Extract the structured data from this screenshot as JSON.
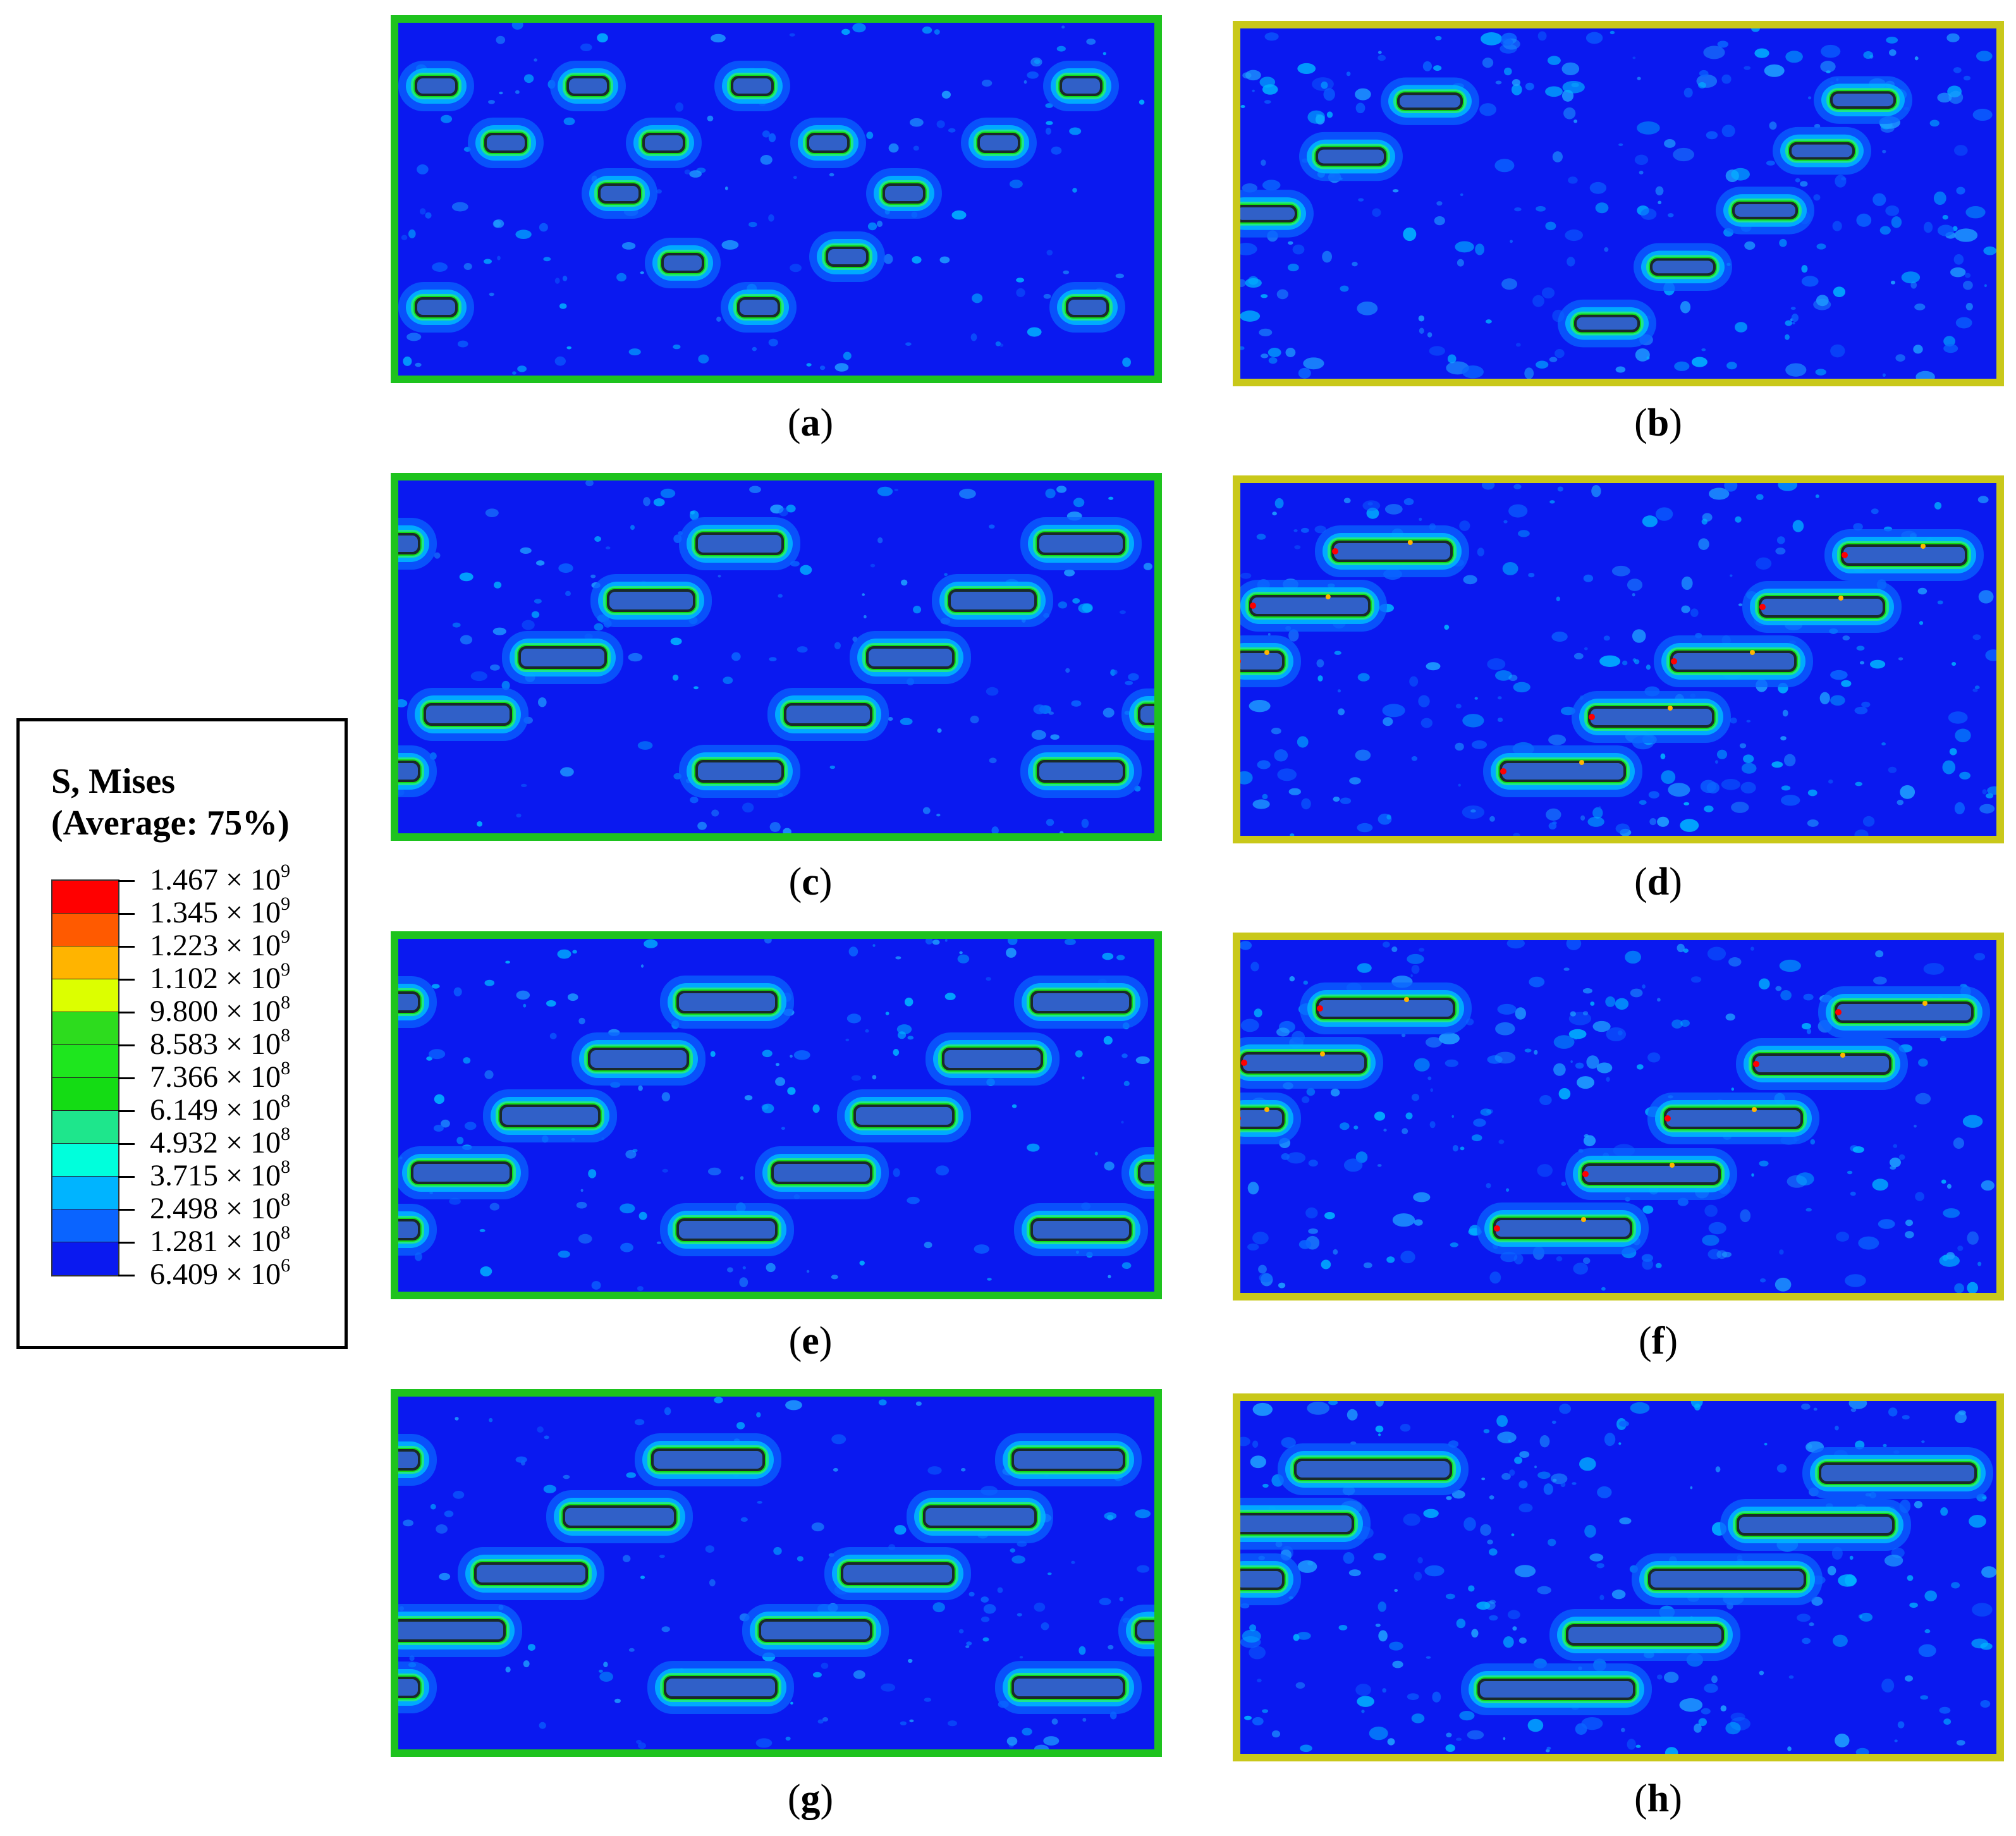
{
  "legend": {
    "title_line1": "S, Mises",
    "title_line2": "(Average: 75%)",
    "entries": [
      {
        "mantissa": "1.467",
        "exponent": "9"
      },
      {
        "mantissa": "1.345",
        "exponent": "9"
      },
      {
        "mantissa": "1.223",
        "exponent": "9"
      },
      {
        "mantissa": "1.102",
        "exponent": "9"
      },
      {
        "mantissa": "9.800",
        "exponent": "8"
      },
      {
        "mantissa": "8.583",
        "exponent": "8"
      },
      {
        "mantissa": "7.366",
        "exponent": "8"
      },
      {
        "mantissa": "6.149",
        "exponent": "8"
      },
      {
        "mantissa": "4.932",
        "exponent": "8"
      },
      {
        "mantissa": "3.715",
        "exponent": "8"
      },
      {
        "mantissa": "2.498",
        "exponent": "8"
      },
      {
        "mantissa": "1.281",
        "exponent": "8"
      },
      {
        "mantissa": "6.409",
        "exponent": "6"
      }
    ],
    "times_sign": "×",
    "base": "10",
    "colors": [
      "#ff0000",
      "#ff5a00",
      "#ffb400",
      "#dcff00",
      "#2ddc1e",
      "#1ee61e",
      "#14dc14",
      "#1ee68c",
      "#00ffdc",
      "#00b4ff",
      "#0a64ff",
      "#0a19f0"
    ]
  },
  "panels": [
    {
      "label": "a",
      "frame": "green"
    },
    {
      "label": "b",
      "frame": "yellow"
    },
    {
      "label": "c",
      "frame": "green"
    },
    {
      "label": "d",
      "frame": "yellow"
    },
    {
      "label": "e",
      "frame": "green"
    },
    {
      "label": "f",
      "frame": "yellow"
    },
    {
      "label": "g",
      "frame": "green"
    },
    {
      "label": "h",
      "frame": "yellow"
    }
  ],
  "caption_open": "(",
  "caption_close": ")",
  "colors": {
    "green_frame": "#1ec31e",
    "yellow_frame": "#c9c81a",
    "background_stress": "#0a19f0"
  }
}
